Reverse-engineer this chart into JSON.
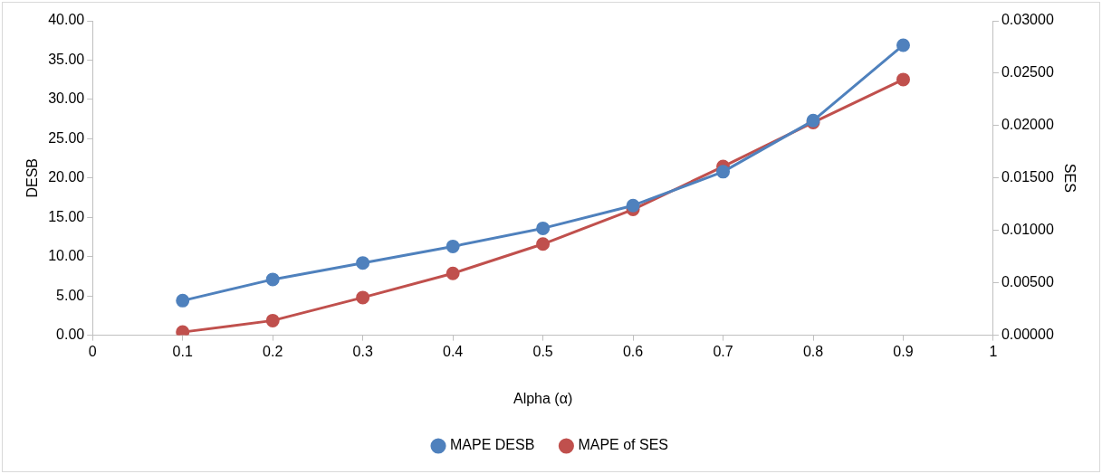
{
  "chart_data": {
    "type": "line",
    "xlabel": "Alpha (α)",
    "ylabel": "DESB",
    "y2label": "SES",
    "x": [
      0.1,
      0.2,
      0.3,
      0.4,
      0.5,
      0.6,
      0.7,
      0.8,
      0.9
    ],
    "series": [
      {
        "name": "MAPE DESB",
        "color": "#4f81bd",
        "values": [
          4.4,
          7.1,
          9.2,
          11.3,
          13.6,
          16.5,
          20.8,
          27.3,
          36.9
        ]
      },
      {
        "name": "MAPE of SES",
        "color": "#c0504d",
        "axis": "y2",
        "values": [
          0.0003,
          0.0014,
          0.0036,
          0.0059,
          0.0087,
          0.012,
          0.0161,
          0.0203,
          0.0244
        ]
      }
    ],
    "xlim": [
      0,
      1
    ],
    "xticks": [
      0,
      0.1,
      0.2,
      0.3,
      0.4,
      0.5,
      0.6,
      0.7,
      0.8,
      0.9,
      1
    ],
    "ylim": [
      0,
      40
    ],
    "yticks": [
      {
        "value": 0,
        "label": "0.00"
      },
      {
        "value": 5,
        "label": "5.00"
      },
      {
        "value": 10,
        "label": "10.00"
      },
      {
        "value": 15,
        "label": "15.00"
      },
      {
        "value": 20,
        "label": "20.00"
      },
      {
        "value": 25,
        "label": "25.00"
      },
      {
        "value": 30,
        "label": "30.00"
      },
      {
        "value": 35,
        "label": "35.00"
      },
      {
        "value": 40,
        "label": "40.00"
      }
    ],
    "y2lim": [
      0,
      0.03
    ],
    "y2ticks": [
      {
        "value": 0,
        "label": "0.00000"
      },
      {
        "value": 0.005,
        "label": "0.00500"
      },
      {
        "value": 0.01,
        "label": "0.01000"
      },
      {
        "value": 0.015,
        "label": "0.01500"
      },
      {
        "value": 0.02,
        "label": "0.02000"
      },
      {
        "value": 0.025,
        "label": "0.02500"
      },
      {
        "value": 0.03,
        "label": "0.03000"
      }
    ],
    "legend": "bottom",
    "marker": "circle"
  }
}
